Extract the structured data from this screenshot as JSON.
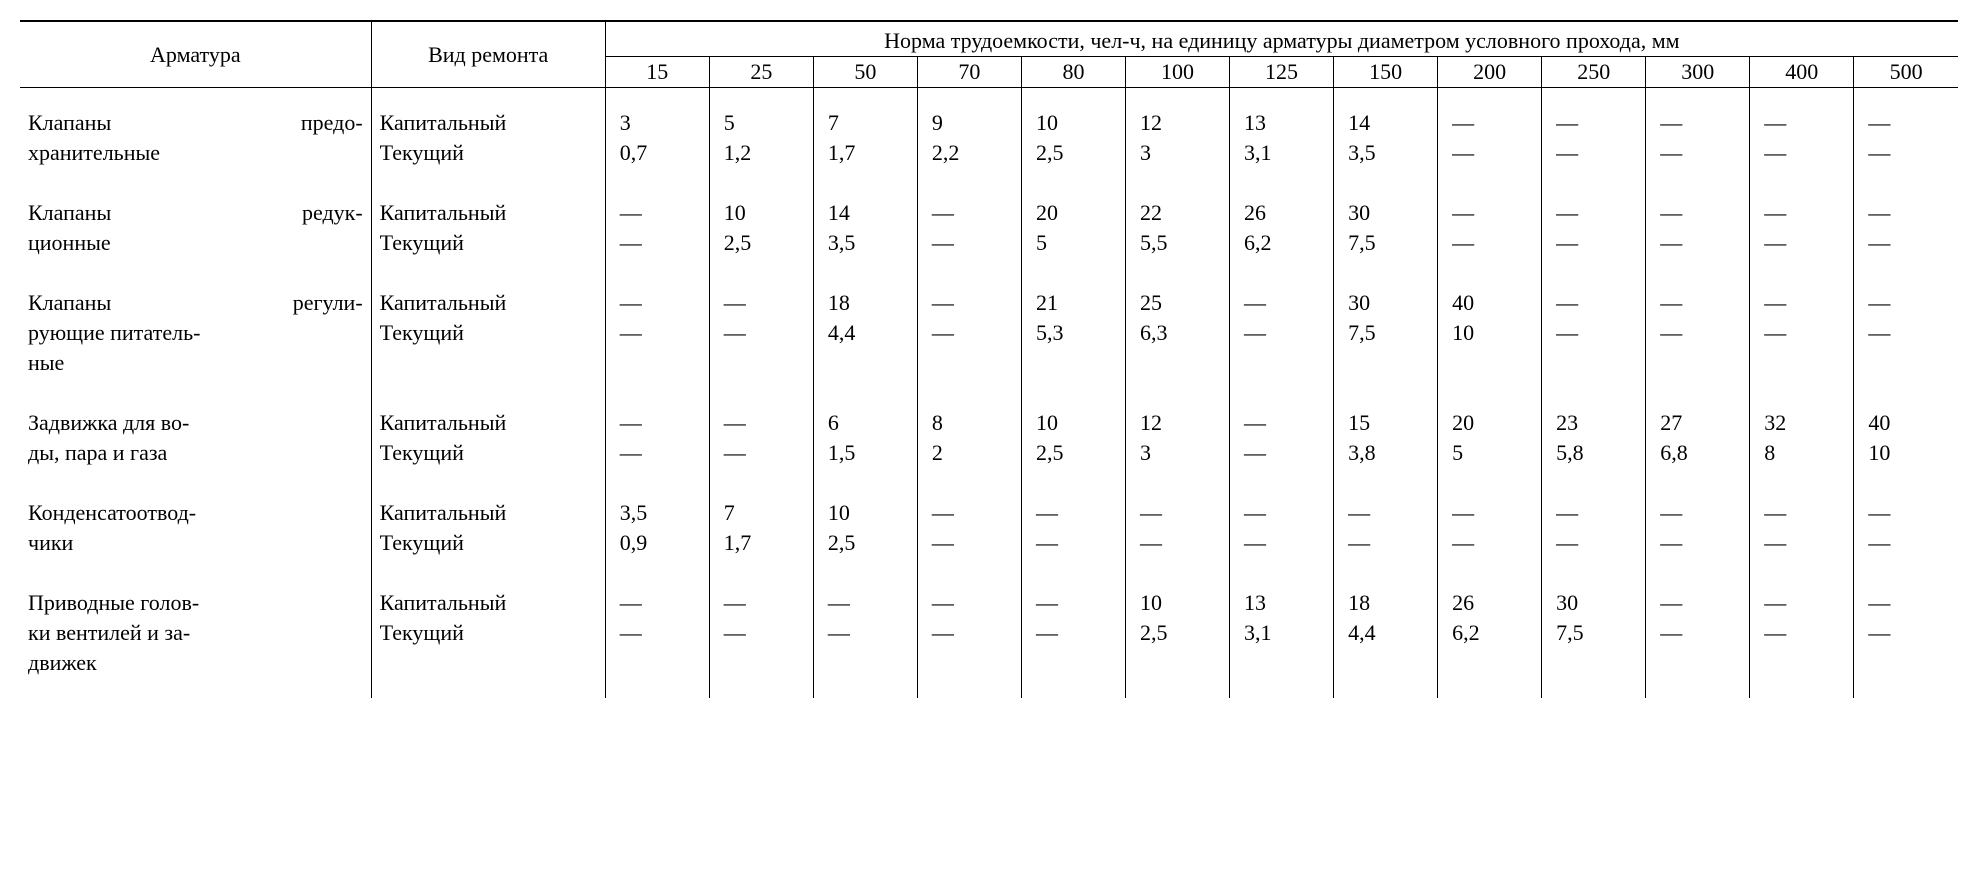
{
  "header": {
    "col_armature": "Арматура",
    "col_repair": "Вид ремонта",
    "norm_title": "Норма трудоемкости, чел-ч, на единицу арматуры диаметром условного прохода, мм",
    "diameters": [
      "15",
      "25",
      "50",
      "70",
      "80",
      "100",
      "125",
      "150",
      "200",
      "250",
      "300",
      "400",
      "500"
    ]
  },
  "repair_types": {
    "capital": "Капитальный",
    "current": "Текущий"
  },
  "dash": "—",
  "groups": [
    {
      "name_lines": [
        "Клапаны предо-",
        "хранительные"
      ],
      "just_first": true,
      "capital": [
        "3",
        "5",
        "7",
        "9",
        "10",
        "12",
        "13",
        "14",
        "—",
        "—",
        "—",
        "—",
        "—"
      ],
      "current": [
        "0,7",
        "1,2",
        "1,7",
        "2,2",
        "2,5",
        "3",
        "3,1",
        "3,5",
        "—",
        "—",
        "—",
        "—",
        "—"
      ]
    },
    {
      "name_lines": [
        "Клапаны редук-",
        "ционные"
      ],
      "just_first": true,
      "capital": [
        "—",
        "10",
        "14",
        "—",
        "20",
        "22",
        "26",
        "30",
        "—",
        "—",
        "—",
        "—",
        "—"
      ],
      "current": [
        "—",
        "2,5",
        "3,5",
        "—",
        "5",
        "5,5",
        "6,2",
        "7,5",
        "—",
        "—",
        "—",
        "—",
        "—"
      ]
    },
    {
      "name_lines": [
        "Клапаны регули-",
        "рующие питатель-",
        "ные"
      ],
      "just_first": true,
      "capital": [
        "—",
        "—",
        "18",
        "—",
        "21",
        "25",
        "—",
        "30",
        "40",
        "—",
        "—",
        "—",
        "—"
      ],
      "current": [
        "—",
        "—",
        "4,4",
        "—",
        "5,3",
        "6,3",
        "—",
        "7,5",
        "10",
        "—",
        "—",
        "—",
        "—"
      ]
    },
    {
      "name_lines": [
        "Задвижка для во-",
        "ды, пара и газа"
      ],
      "just_first": false,
      "capital": [
        "—",
        "—",
        "6",
        "8",
        "10",
        "12",
        "—",
        "15",
        "20",
        "23",
        "27",
        "32",
        "40"
      ],
      "current": [
        "—",
        "—",
        "1,5",
        "2",
        "2,5",
        "3",
        "—",
        "3,8",
        "5",
        "5,8",
        "6,8",
        "8",
        "10"
      ]
    },
    {
      "name_lines": [
        "Конденсатоотвод-",
        "чики"
      ],
      "just_first": false,
      "capital": [
        "3,5",
        "7",
        "10",
        "—",
        "—",
        "—",
        "—",
        "—",
        "—",
        "—",
        "—",
        "—",
        "—"
      ],
      "current": [
        "0,9",
        "1,7",
        "2,5",
        "—",
        "—",
        "—",
        "—",
        "—",
        "—",
        "—",
        "—",
        "—",
        "—"
      ]
    },
    {
      "name_lines": [
        "Приводные голов-",
        "ки вентилей и за-",
        "движек"
      ],
      "just_first": false,
      "capital": [
        "—",
        "—",
        "—",
        "—",
        "—",
        "10",
        "13",
        "18",
        "26",
        "30",
        "—",
        "—",
        "—"
      ],
      "current": [
        "—",
        "—",
        "—",
        "—",
        "—",
        "2,5",
        "3,1",
        "4,4",
        "6,2",
        "7,5",
        "—",
        "—",
        "—"
      ]
    }
  ]
}
